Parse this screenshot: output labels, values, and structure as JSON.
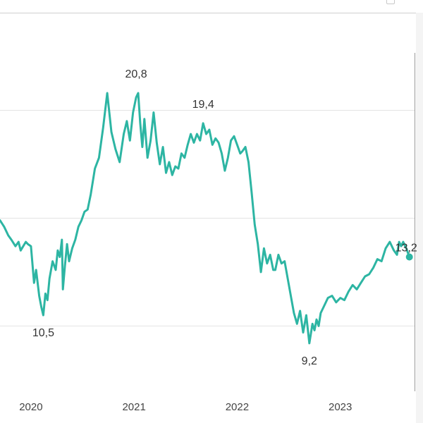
{
  "chart_data": {
    "type": "line",
    "title": "",
    "xlabel": "",
    "ylabel": "",
    "x_ticks": [
      2020,
      2021,
      2022,
      2023
    ],
    "x_range": [
      2019.7,
      2023.72
    ],
    "ylim": [
      7.3,
      22.5
    ],
    "y_gridlines": [
      10,
      15,
      20
    ],
    "grid": "horizontal",
    "line_color": "#2db5a3",
    "series": [
      {
        "x": [
          2019.7,
          2019.74,
          2019.78,
          2019.81,
          2019.85,
          2019.88,
          2019.9,
          2019.95,
          2019.97,
          2020.0,
          2020.03,
          2020.05,
          2020.08,
          2020.1,
          2020.12,
          2020.14,
          2020.16,
          2020.18,
          2020.21,
          2020.24,
          2020.26,
          2020.28,
          2020.3,
          2020.31,
          2020.33,
          2020.35,
          2020.37,
          2020.39,
          2020.4,
          2020.43,
          2020.46,
          2020.49,
          2020.52,
          2020.55,
          2020.58,
          2020.62,
          2020.66,
          2020.7,
          2020.74,
          2020.78,
          2020.82,
          2020.86,
          2020.9,
          2020.93,
          2020.96,
          2020.99,
          2021.02,
          2021.04,
          2021.06,
          2021.08,
          2021.1,
          2021.13,
          2021.16,
          2021.19,
          2021.22,
          2021.25,
          2021.28,
          2021.31,
          2021.34,
          2021.37,
          2021.4,
          2021.43,
          2021.46,
          2021.49,
          2021.52,
          2021.55,
          2021.58,
          2021.61,
          2021.64,
          2021.67,
          2021.7,
          2021.73,
          2021.76,
          2021.79,
          2021.82,
          2021.85,
          2021.88,
          2021.91,
          2021.94,
          2021.97,
          2022.0,
          2022.03,
          2022.05,
          2022.08,
          2022.11,
          2022.14,
          2022.17,
          2022.2,
          2022.23,
          2022.26,
          2022.29,
          2022.32,
          2022.35,
          2022.37,
          2022.4,
          2022.43,
          2022.46,
          2022.49,
          2022.52,
          2022.55,
          2022.58,
          2022.61,
          2022.64,
          2022.67,
          2022.7,
          2022.73,
          2022.75,
          2022.77,
          2022.79,
          2022.81,
          2022.84,
          2022.88,
          2022.92,
          2022.96,
          2023.0,
          2023.04,
          2023.08,
          2023.12,
          2023.16,
          2023.2,
          2023.24,
          2023.28,
          2023.32,
          2023.36,
          2023.4,
          2023.44,
          2023.48,
          2023.52,
          2023.55,
          2023.57,
          2023.59,
          2023.61,
          2023.64,
          2023.67
        ],
        "y": [
          14.9,
          14.6,
          14.2,
          14.0,
          13.7,
          13.9,
          13.5,
          13.9,
          13.8,
          13.7,
          12.0,
          12.6,
          11.4,
          10.9,
          10.5,
          11.5,
          11.2,
          12.2,
          13.0,
          12.6,
          13.5,
          13.2,
          14.0,
          11.7,
          12.8,
          13.8,
          13.0,
          13.4,
          13.6,
          14.0,
          14.6,
          14.9,
          15.3,
          15.4,
          16.1,
          17.3,
          17.8,
          19.2,
          20.8,
          19.0,
          18.2,
          17.6,
          18.9,
          19.5,
          18.6,
          19.9,
          20.6,
          20.8,
          19.4,
          18.3,
          19.6,
          17.8,
          18.6,
          19.9,
          18.5,
          17.5,
          18.3,
          17.1,
          17.6,
          17.0,
          17.4,
          17.3,
          18.0,
          17.8,
          18.4,
          18.9,
          18.5,
          18.9,
          18.6,
          19.4,
          18.9,
          19.1,
          18.4,
          18.7,
          18.5,
          18.0,
          17.2,
          17.8,
          18.6,
          18.8,
          18.4,
          18.0,
          18.1,
          18.3,
          17.6,
          16.2,
          14.7,
          13.8,
          12.5,
          13.6,
          12.9,
          13.3,
          12.6,
          12.6,
          13.3,
          12.9,
          13.0,
          12.2,
          11.4,
          10.6,
          10.1,
          10.7,
          9.7,
          10.5,
          9.2,
          10.1,
          9.8,
          10.3,
          10.0,
          10.6,
          10.9,
          11.3,
          11.4,
          11.1,
          11.3,
          11.2,
          11.6,
          11.9,
          11.7,
          12.0,
          12.3,
          12.4,
          12.7,
          13.1,
          13.0,
          13.6,
          13.9,
          13.5,
          13.3,
          13.9,
          13.7,
          13.9,
          13.6,
          13.2
        ]
      }
    ],
    "annotations": [
      {
        "x": 2020.12,
        "y": 10.5,
        "label": "10,5",
        "pos": "below"
      },
      {
        "x": 2021.02,
        "y": 20.8,
        "label": "20,8",
        "pos": "above"
      },
      {
        "x": 2021.67,
        "y": 19.4,
        "label": "19,4",
        "pos": "above"
      },
      {
        "x": 2022.7,
        "y": 9.2,
        "label": "9,2",
        "pos": "below"
      },
      {
        "x": 2023.67,
        "y": 13.2,
        "label": "13,2",
        "pos": "above-left"
      }
    ]
  }
}
